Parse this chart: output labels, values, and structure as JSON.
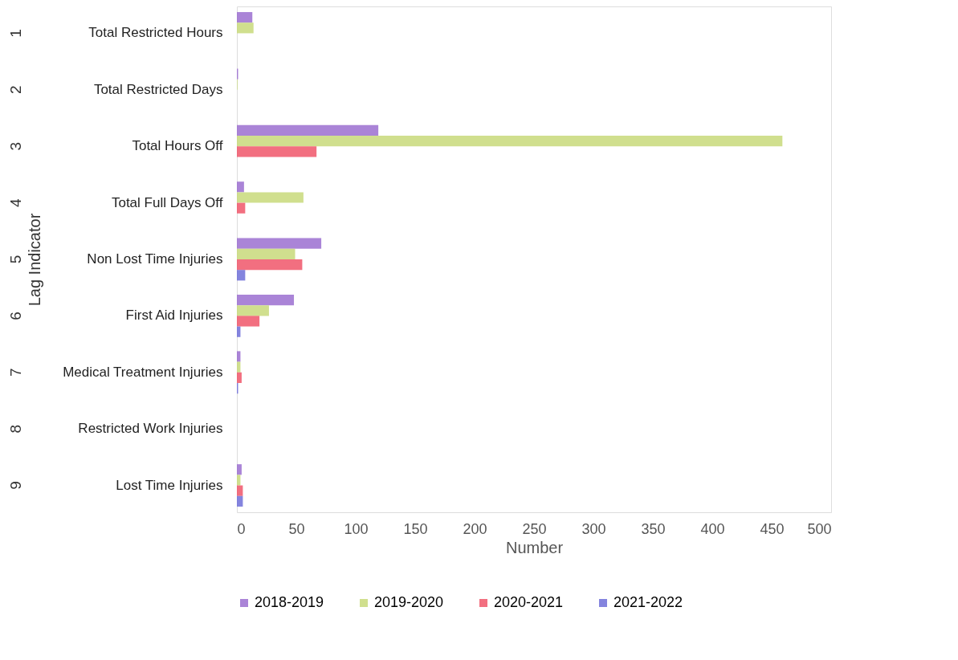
{
  "chart_data": {
    "type": "bar",
    "orientation": "horizontal",
    "xlabel": "Number",
    "ylabel": "Lag Indicator",
    "categories": [
      "Total Restricted Hours",
      "Total Restricted Days",
      "Total Hours Off",
      "Total Full Days Off",
      "Non Lost Time Injuries",
      "First Aid Injuries",
      "Medical Treatment Injuries",
      "Restricted Work Injuries",
      "Lost Time Injuries"
    ],
    "annotations": [
      "1",
      "2",
      "3",
      "4",
      "5",
      "6",
      "7",
      "8",
      "9"
    ],
    "series": [
      {
        "name": "2018-2019",
        "color": "#9b6fd0",
        "values": [
          13,
          1,
          119,
          6,
          71,
          48,
          3,
          null,
          4
        ]
      },
      {
        "name": "2019-2020",
        "color": "#c8d97a",
        "values": [
          14,
          0.5,
          459,
          56,
          49,
          27,
          3,
          null,
          3
        ]
      },
      {
        "name": "2020-2021",
        "color": "#f0566a",
        "values": [
          null,
          null,
          67,
          7,
          55,
          19,
          4,
          null,
          5
        ]
      },
      {
        "name": "2021-2022",
        "color": "#6f6fd8",
        "values": [
          null,
          null,
          null,
          null,
          7,
          3,
          1,
          null,
          5
        ]
      }
    ],
    "xlim": [
      0,
      500
    ],
    "xticks": [
      0,
      50,
      100,
      150,
      200,
      250,
      300,
      350,
      400,
      450,
      500
    ],
    "grid": false,
    "legend": "bottom"
  }
}
